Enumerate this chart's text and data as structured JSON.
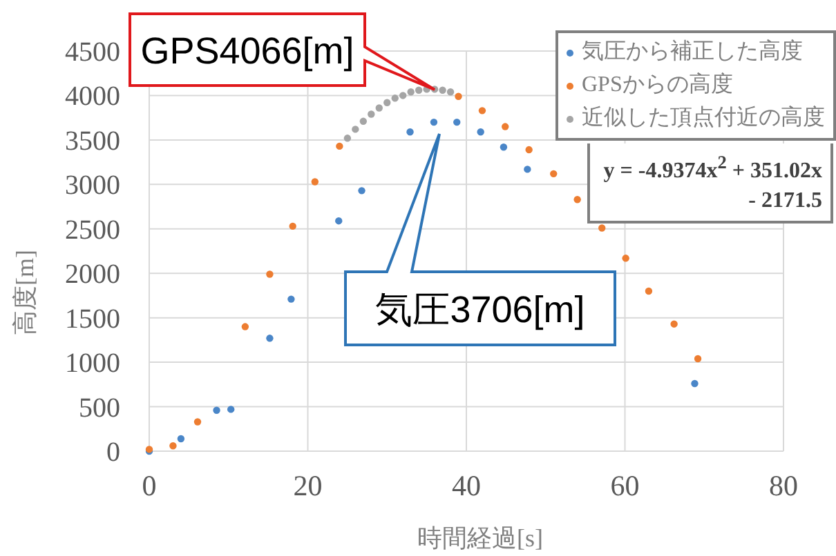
{
  "chart_data": {
    "type": "scatter",
    "xlabel": "時間経過[s]",
    "ylabel": "高度[m]",
    "xlim": [
      0,
      80
    ],
    "xticks": [
      0,
      20,
      40,
      60,
      80
    ],
    "ylim": [
      0,
      4500
    ],
    "yticks": [
      0,
      500,
      1000,
      1500,
      2000,
      2500,
      3000,
      3500,
      4000,
      4500
    ],
    "grid": true,
    "legend": "top right",
    "marker": "circle",
    "series": [
      {
        "name": "気圧から補正した高度",
        "color": "#4a86c8",
        "x": [
          0,
          4,
          8.5,
          10.3,
          15.2,
          17.9,
          23.9,
          26.8,
          32.9,
          35.9,
          38.8,
          41.8,
          44.7,
          47.7,
          68.8
        ],
        "values": [
          0,
          140,
          460,
          470,
          1270,
          1710,
          2590,
          2930,
          3590,
          3700,
          3700,
          3590,
          3420,
          3170,
          760
        ]
      },
      {
        "name": "GPSからの高度",
        "color": "#ed7d31",
        "x": [
          0,
          3,
          6.1,
          12.1,
          15.2,
          18.1,
          20.9,
          24,
          39,
          42,
          44.9,
          47.9,
          51,
          54,
          57.1,
          60.1,
          63,
          66.2,
          69.2
        ],
        "values": [
          20,
          60,
          330,
          1400,
          1990,
          2530,
          3030,
          3430,
          3990,
          3830,
          3650,
          3390,
          3120,
          2830,
          2510,
          2170,
          1800,
          1430,
          1040
        ]
      },
      {
        "name": "近似した頂点付近の高度",
        "color": "#a5a5a5",
        "x": [
          25,
          26,
          27,
          28,
          29,
          30,
          31,
          32,
          33,
          34,
          35,
          36,
          37,
          38
        ],
        "values": [
          3520,
          3620,
          3710,
          3790,
          3860,
          3920,
          3970,
          4000,
          4040,
          4060,
          4070,
          4070,
          4060,
          4040
        ]
      }
    ],
    "annotations": [
      {
        "text": "GPS4066[m]",
        "x": 36,
        "y": 4066
      },
      "気圧3706[m]",
      "y = -4.9374x$^{2}$ + 351.02x - 2171.5"
    ]
  }
}
